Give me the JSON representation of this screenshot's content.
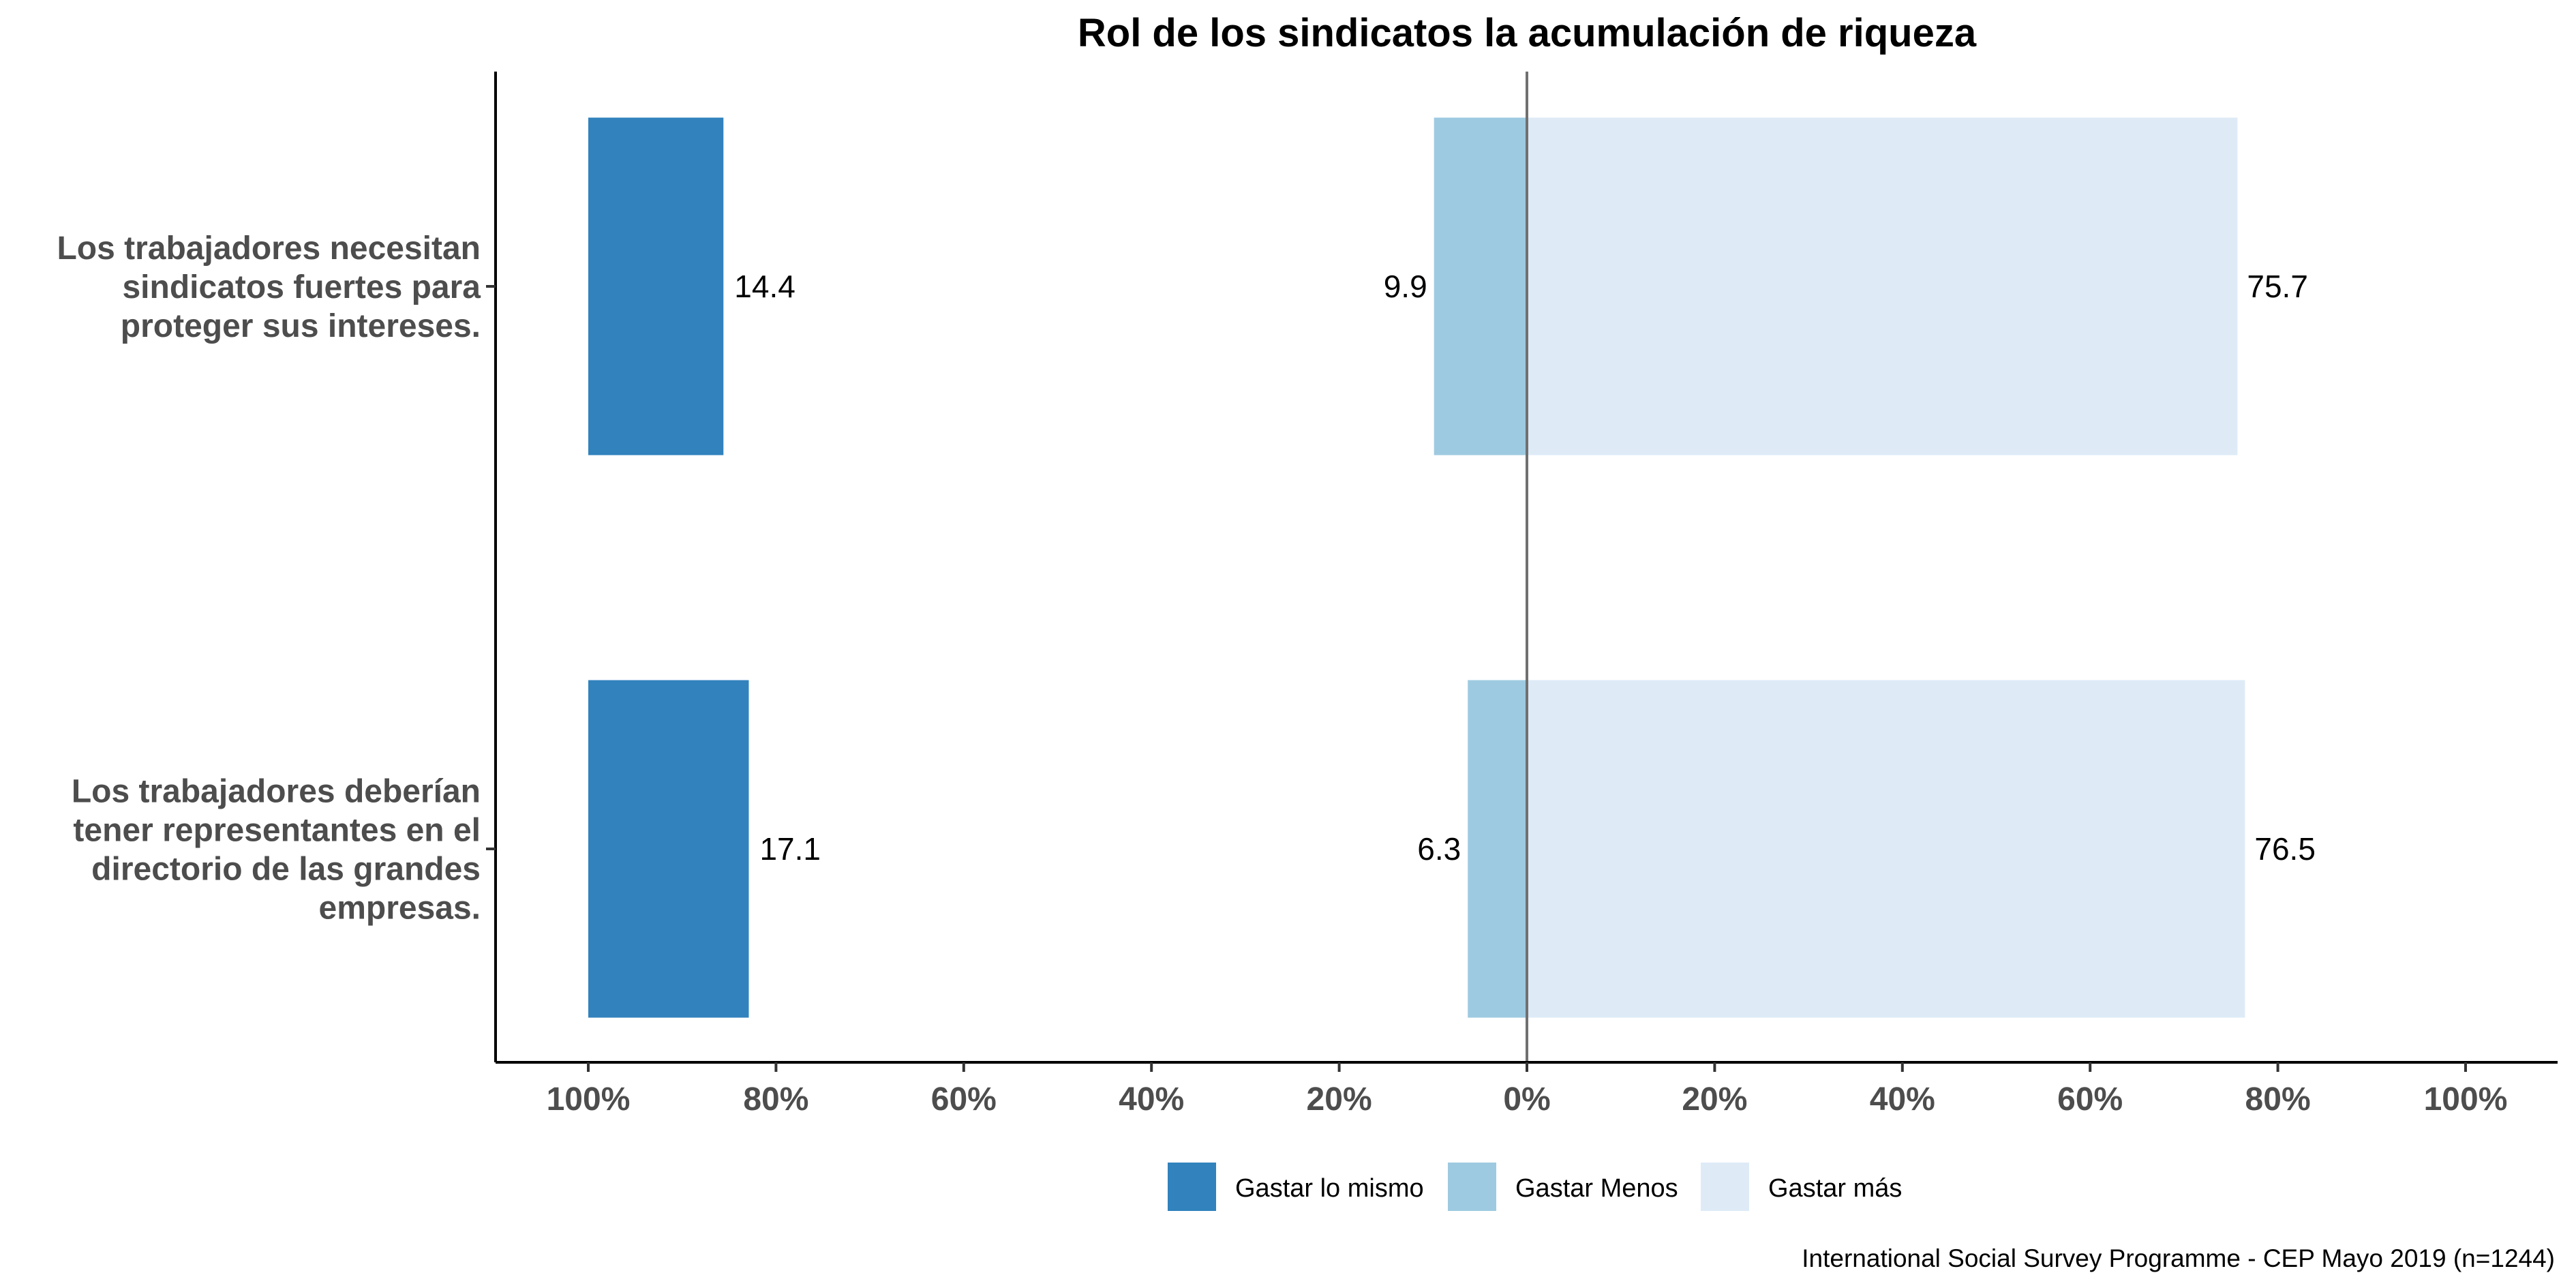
{
  "chart_data": {
    "type": "bar",
    "orientation": "horizontal-diverging",
    "title": "Rol de los sindicatos la acumulación de riqueza",
    "caption": "International Social Survey Programme - CEP Mayo 2019 (n=1244)",
    "categories": [
      [
        "Los trabajadores necesitan",
        "sindicatos fuertes para",
        "proteger sus intereses."
      ],
      [
        "Los trabajadores deberían",
        "tener representantes en el",
        "directorio de las grandes",
        "empresas."
      ]
    ],
    "series": [
      {
        "name": "Gastar lo mismo",
        "color": "#3182bd",
        "values": [
          14.4,
          17.1
        ],
        "position": "left-anchored-at-100"
      },
      {
        "name": "Gastar Menos",
        "color": "#9ecae1",
        "values": [
          9.9,
          6.3
        ],
        "position": "left-of-zero"
      },
      {
        "name": "Gastar más",
        "color": "#deebf7",
        "values": [
          75.7,
          76.5
        ],
        "position": "right-of-zero"
      }
    ],
    "xlim": [
      -110,
      110
    ],
    "x_ticks": [
      -100,
      -80,
      -60,
      -40,
      -20,
      0,
      20,
      40,
      60,
      80,
      100
    ],
    "x_tick_labels": [
      "100%",
      "80%",
      "60%",
      "40%",
      "20%",
      "0%",
      "20%",
      "40%",
      "60%",
      "80%",
      "100%"
    ],
    "legend_position": "bottom",
    "grid": false
  }
}
